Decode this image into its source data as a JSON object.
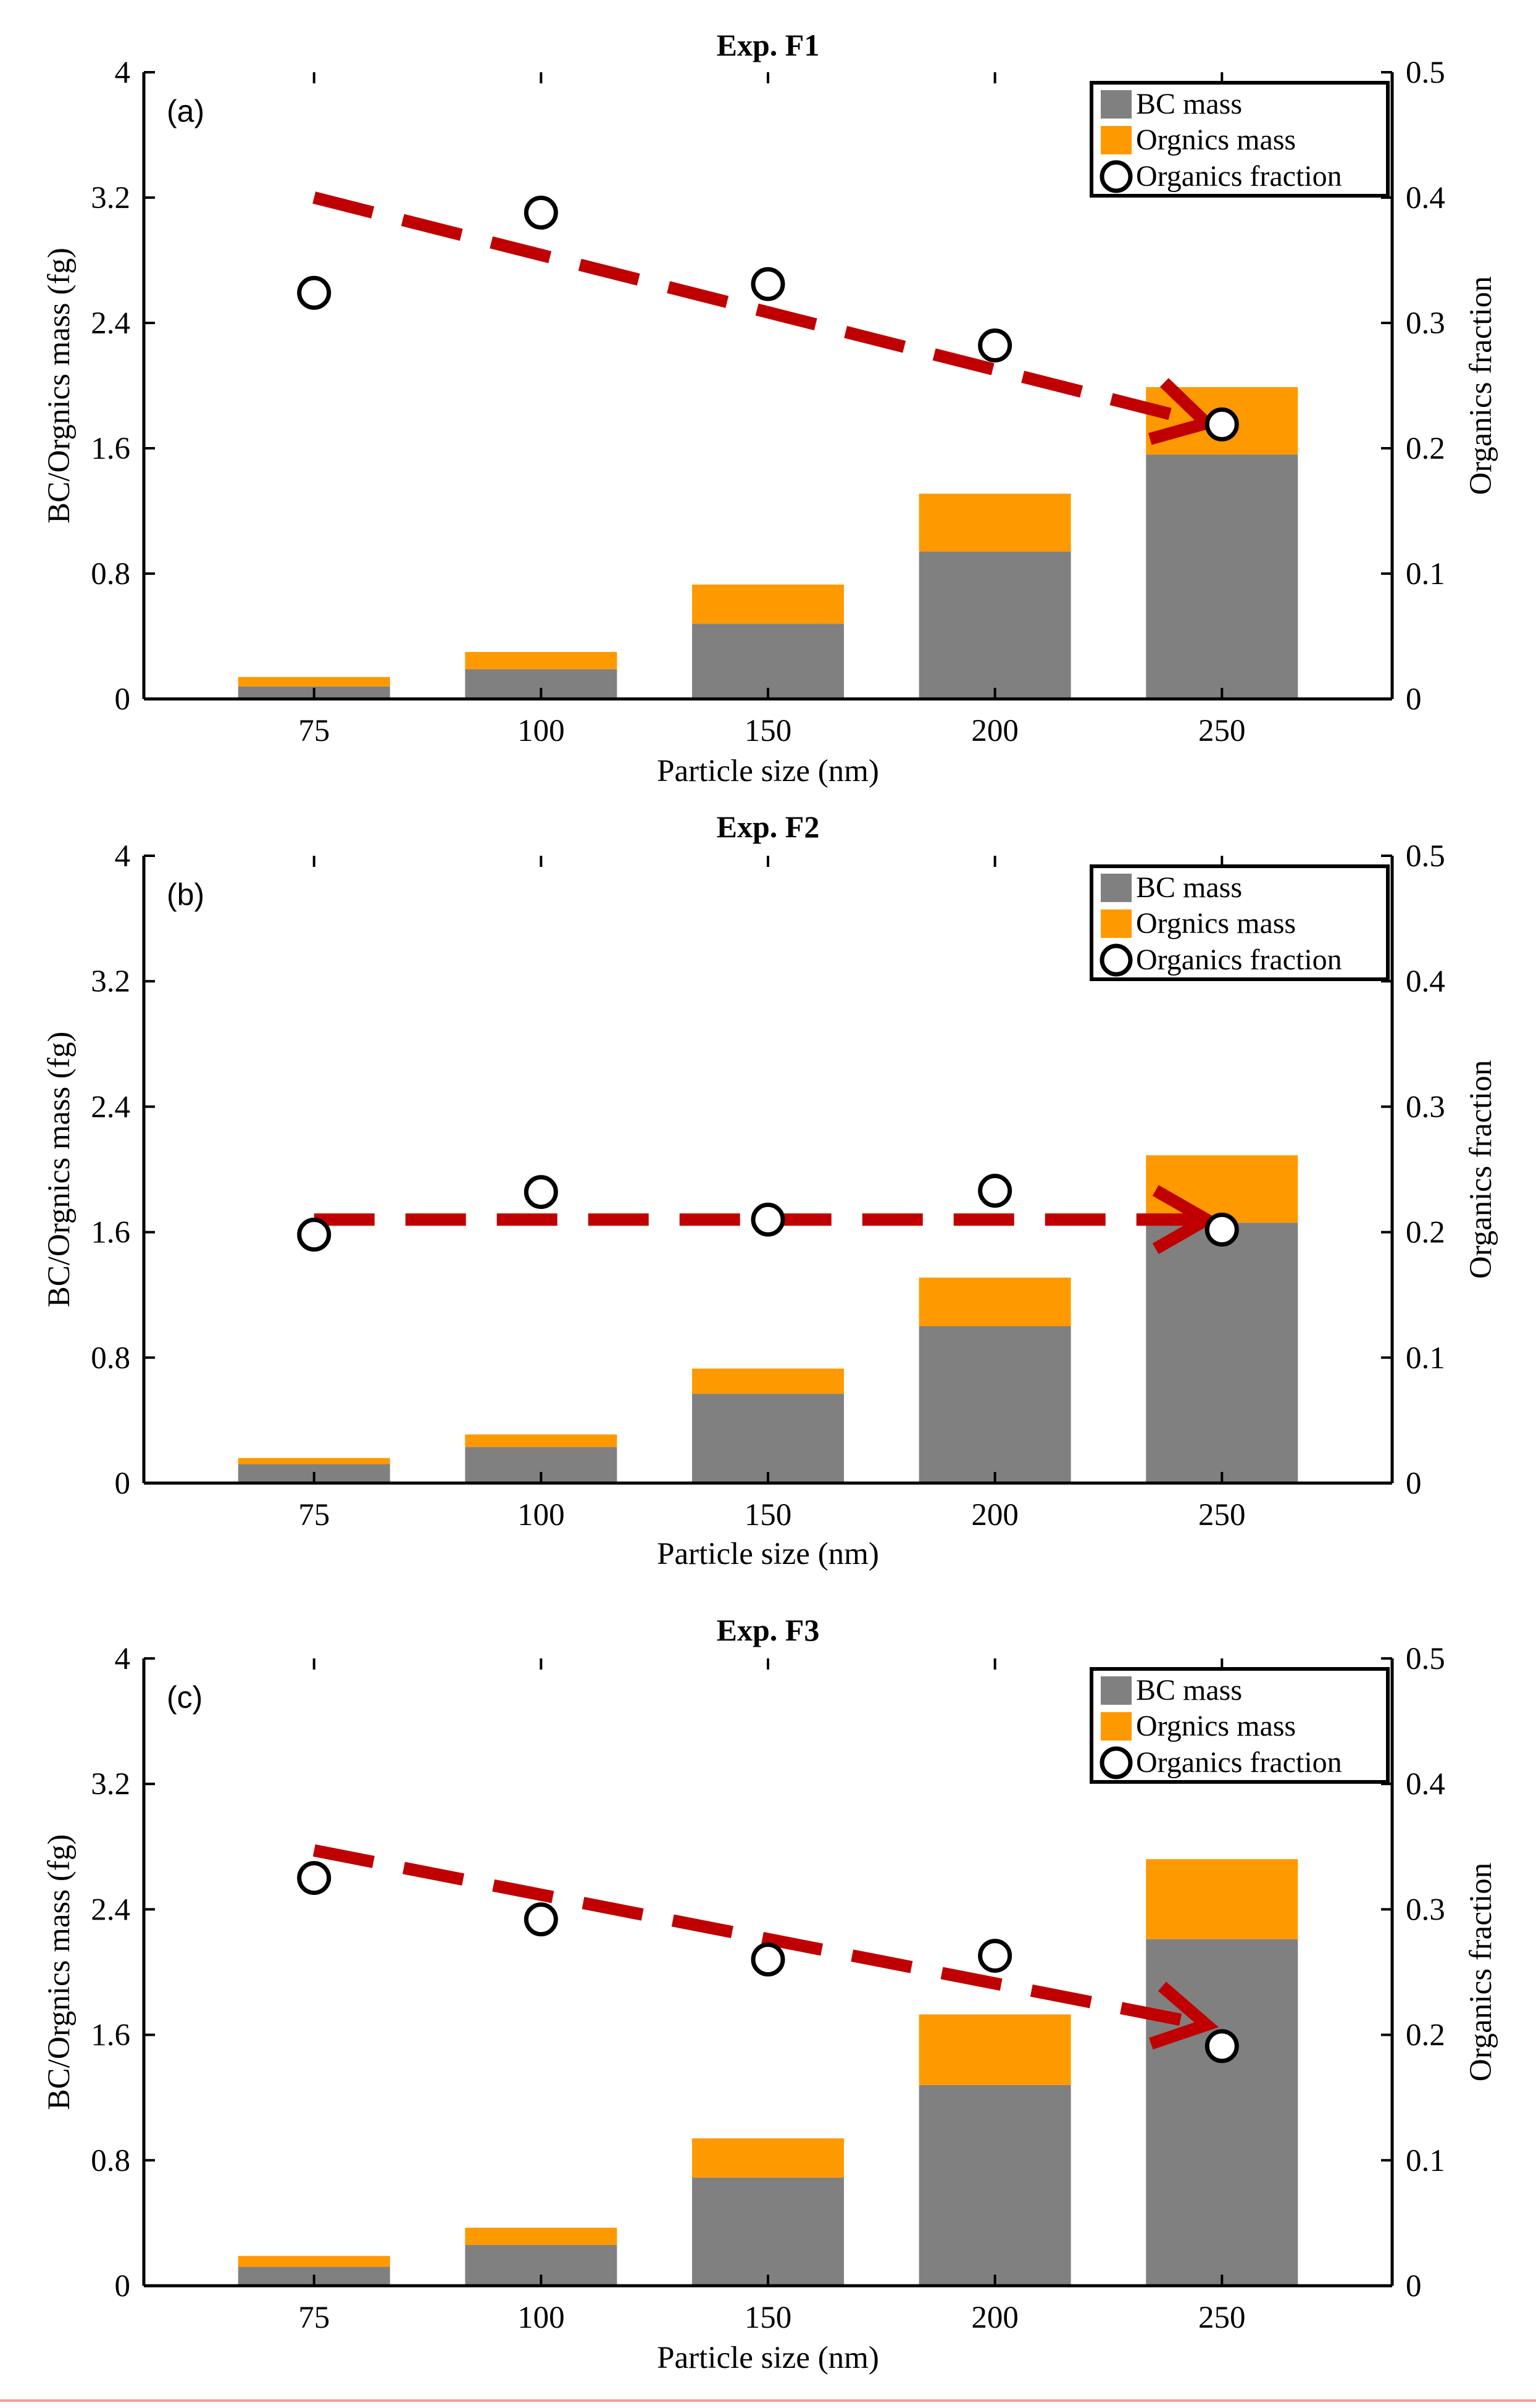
{
  "colors": {
    "bc": "#808080",
    "org": "#ff9900",
    "trend": "#c00000",
    "frame": "#000000",
    "marker_fill": "#ffffff",
    "bottom_rule": "#f4a0a0"
  },
  "legend": {
    "bc": "BC mass",
    "org": "Orgnics mass",
    "frac": "Organics fraction"
  },
  "chart_data": [
    {
      "type": "bar",
      "title": "Exp. F1",
      "panel": "(a)",
      "categories": [
        "75",
        "100",
        "150",
        "200",
        "250"
      ],
      "xlabel": "Particle size (nm)",
      "ylabel": "BC/Orgnics mass (fg)",
      "y2label": "Organics fraction",
      "ylim": [
        0,
        4
      ],
      "y2lim": [
        0,
        0.5
      ],
      "yticks": [
        "0",
        "0.8",
        "1.6",
        "2.4",
        "3.2",
        "4"
      ],
      "y2ticks": [
        "0",
        "0.1",
        "0.2",
        "0.3",
        "0.4",
        "0.5"
      ],
      "series": [
        {
          "name": "BC mass",
          "values": [
            0.08,
            0.19,
            0.48,
            0.94,
            1.56
          ]
        },
        {
          "name": "Orgnics mass",
          "values": [
            0.06,
            0.11,
            0.25,
            0.37,
            0.43
          ]
        },
        {
          "name": "Organics fraction",
          "axis": "right",
          "values": [
            0.324,
            0.388,
            0.331,
            0.282,
            0.219
          ]
        }
      ],
      "trend": {
        "from": [
          75,
          0.4
        ],
        "to": [
          250,
          0.22
        ]
      }
    },
    {
      "type": "bar",
      "title": "Exp. F2",
      "panel": "(b)",
      "categories": [
        "75",
        "100",
        "150",
        "200",
        "250"
      ],
      "xlabel": "Particle size (nm)",
      "ylabel": "BC/Orgnics mass (fg)",
      "y2label": "Organics fraction",
      "ylim": [
        0,
        4
      ],
      "y2lim": [
        0,
        0.5
      ],
      "yticks": [
        "0",
        "0.8",
        "1.6",
        "2.4",
        "3.2",
        "4"
      ],
      "y2ticks": [
        "0",
        "0.1",
        "0.2",
        "0.3",
        "0.4",
        "0.5"
      ],
      "series": [
        {
          "name": "BC mass",
          "values": [
            0.12,
            0.23,
            0.57,
            1.0,
            1.66
          ]
        },
        {
          "name": "Orgnics mass",
          "values": [
            0.04,
            0.08,
            0.16,
            0.31,
            0.43
          ]
        },
        {
          "name": "Organics fraction",
          "axis": "right",
          "values": [
            0.198,
            0.232,
            0.21,
            0.233,
            0.202
          ]
        }
      ],
      "trend": {
        "from": [
          75,
          0.21
        ],
        "to": [
          250,
          0.21
        ]
      }
    },
    {
      "type": "bar",
      "title": "Exp. F3",
      "panel": "(c)",
      "categories": [
        "75",
        "100",
        "150",
        "200",
        "250"
      ],
      "xlabel": "Particle size (nm)",
      "ylabel": "BC/Orgnics mass (fg)",
      "y2label": "Organics fraction",
      "ylim": [
        0,
        4
      ],
      "y2lim": [
        0,
        0.5
      ],
      "yticks": [
        "0",
        "0.8",
        "1.6",
        "2.4",
        "3.2",
        "4"
      ],
      "y2ticks": [
        "0",
        "0.1",
        "0.2",
        "0.3",
        "0.4",
        "0.5"
      ],
      "series": [
        {
          "name": "BC mass",
          "values": [
            0.12,
            0.26,
            0.69,
            1.28,
            2.21
          ]
        },
        {
          "name": "Orgnics mass",
          "values": [
            0.07,
            0.11,
            0.25,
            0.45,
            0.51
          ]
        },
        {
          "name": "Organics fraction",
          "axis": "right",
          "values": [
            0.325,
            0.292,
            0.26,
            0.263,
            0.191
          ]
        }
      ],
      "trend": {
        "from": [
          75,
          0.347
        ],
        "to": [
          250,
          0.208
        ]
      }
    }
  ]
}
